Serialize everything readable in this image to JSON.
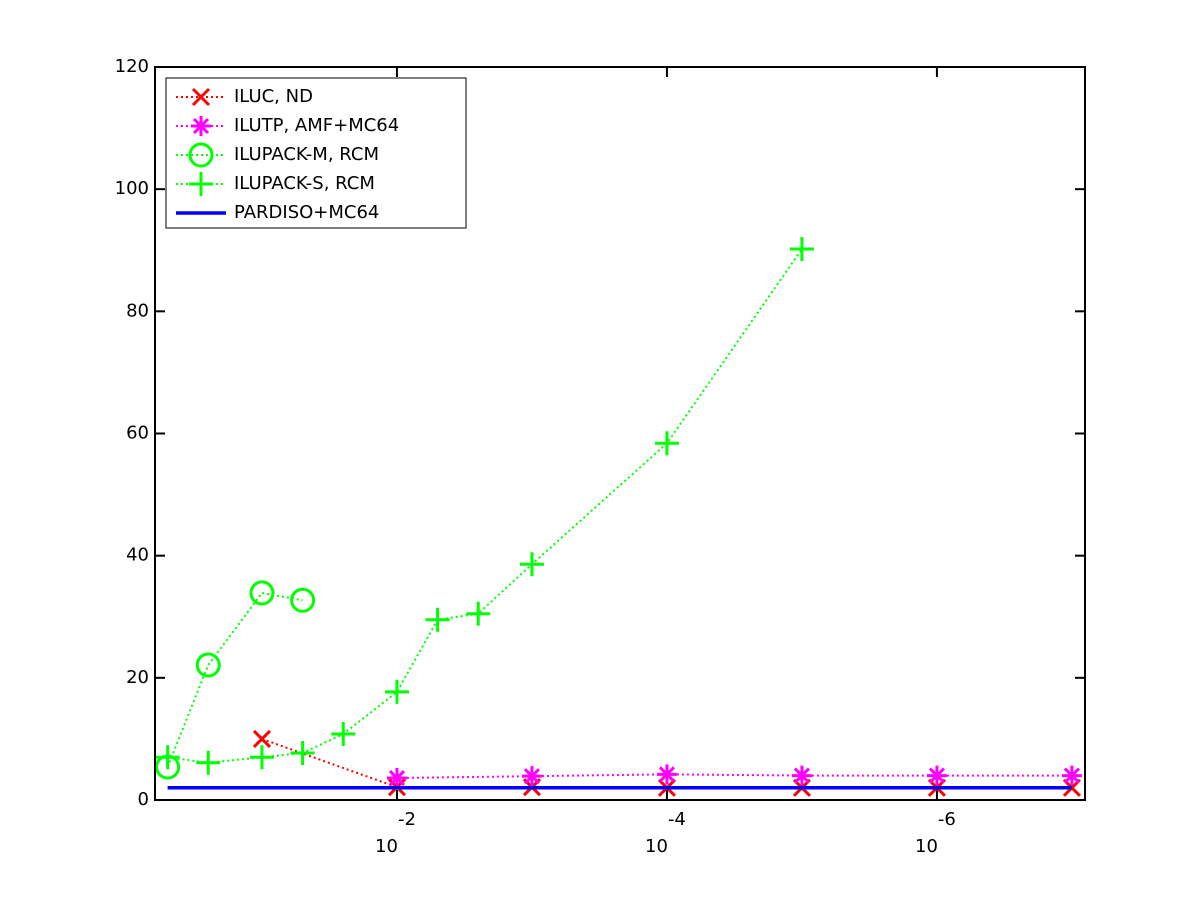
{
  "chart_data": {
    "type": "line",
    "x_scale": "log",
    "xlim": [
      0.62,
      8e-08
    ],
    "xticks": [
      {
        "value": 0.01,
        "label": "10",
        "exponent": "-2"
      },
      {
        "value": 0.0001,
        "label": "10",
        "exponent": "-4"
      },
      {
        "value": 1e-06,
        "label": "10",
        "exponent": "-6"
      }
    ],
    "ylim": [
      0,
      120
    ],
    "yticks": [
      0,
      20,
      40,
      60,
      80,
      100,
      120
    ],
    "legend": "upper left",
    "series": [
      {
        "name": "ILUC,  ND",
        "color": "#ff0000",
        "marker": "x",
        "linestyle": "dotted",
        "x": [
          0.1,
          0.01,
          0.001,
          0.0001,
          1e-05,
          1e-06,
          1e-07
        ],
        "values": [
          10,
          2.1,
          2.1,
          2,
          2,
          2,
          2
        ]
      },
      {
        "name": "ILUTP, AMF+MC64",
        "color": "#ff00ff",
        "marker": "asterisk",
        "linestyle": "dotted",
        "x": [
          0.01,
          0.001,
          0.0001,
          1e-05,
          1e-06,
          1e-07
        ],
        "values": [
          3.6,
          3.9,
          4.2,
          4.0,
          4.0,
          4.0
        ]
      },
      {
        "name": "ILUPACK-M, RCM",
        "color": "#00ff00",
        "marker": "circle",
        "linestyle": "dotted",
        "x": [
          0.5,
          0.25,
          0.1,
          0.05
        ],
        "values": [
          5.4,
          22.1,
          33.9,
          32.7
        ]
      },
      {
        "name": "ILUPACK-S, RCM",
        "color": "#00ff00",
        "marker": "plus",
        "linestyle": "dotted",
        "x": [
          0.5,
          0.25,
          0.1,
          0.05,
          0.025,
          0.01,
          0.005,
          0.0025,
          0.001,
          0.0001,
          1e-05
        ],
        "values": [
          7.0,
          6.1,
          7.0,
          7.7,
          10.8,
          17.7,
          29.5,
          30.5,
          38.6,
          58.4,
          90.2
        ]
      },
      {
        "name": "PARDISO+MC64",
        "color": "#0000ff",
        "marker": "none",
        "linestyle": "solid",
        "x": [
          0.5,
          1e-07
        ],
        "values": [
          2,
          2
        ]
      }
    ]
  }
}
